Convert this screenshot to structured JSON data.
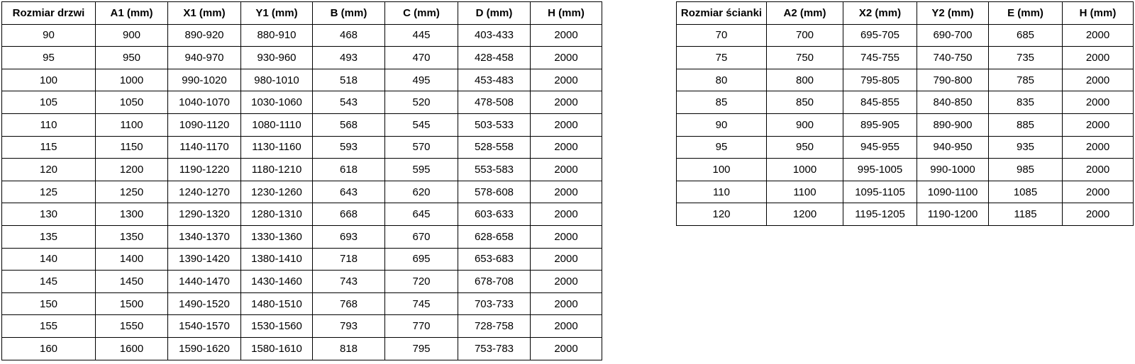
{
  "door_table": {
    "name": "door-size-table",
    "headers": [
      "Rozmiar drzwi",
      "A1 (mm)",
      "X1 (mm)",
      "Y1 (mm)",
      "B (mm)",
      "C (mm)",
      "D (mm)",
      "H (mm)"
    ],
    "rows": [
      [
        "90",
        "900",
        "890-920",
        "880-910",
        "468",
        "445",
        "403-433",
        "2000"
      ],
      [
        "95",
        "950",
        "940-970",
        "930-960",
        "493",
        "470",
        "428-458",
        "2000"
      ],
      [
        "100",
        "1000",
        "990-1020",
        "980-1010",
        "518",
        "495",
        "453-483",
        "2000"
      ],
      [
        "105",
        "1050",
        "1040-1070",
        "1030-1060",
        "543",
        "520",
        "478-508",
        "2000"
      ],
      [
        "110",
        "1100",
        "1090-1120",
        "1080-1110",
        "568",
        "545",
        "503-533",
        "2000"
      ],
      [
        "115",
        "1150",
        "1140-1170",
        "1130-1160",
        "593",
        "570",
        "528-558",
        "2000"
      ],
      [
        "120",
        "1200",
        "1190-1220",
        "1180-1210",
        "618",
        "595",
        "553-583",
        "2000"
      ],
      [
        "125",
        "1250",
        "1240-1270",
        "1230-1260",
        "643",
        "620",
        "578-608",
        "2000"
      ],
      [
        "130",
        "1300",
        "1290-1320",
        "1280-1310",
        "668",
        "645",
        "603-633",
        "2000"
      ],
      [
        "135",
        "1350",
        "1340-1370",
        "1330-1360",
        "693",
        "670",
        "628-658",
        "2000"
      ],
      [
        "140",
        "1400",
        "1390-1420",
        "1380-1410",
        "718",
        "695",
        "653-683",
        "2000"
      ],
      [
        "145",
        "1450",
        "1440-1470",
        "1430-1460",
        "743",
        "720",
        "678-708",
        "2000"
      ],
      [
        "150",
        "1500",
        "1490-1520",
        "1480-1510",
        "768",
        "745",
        "703-733",
        "2000"
      ],
      [
        "155",
        "1550",
        "1540-1570",
        "1530-1560",
        "793",
        "770",
        "728-758",
        "2000"
      ],
      [
        "160",
        "1600",
        "1590-1620",
        "1580-1610",
        "818",
        "795",
        "753-783",
        "2000"
      ]
    ]
  },
  "wall_table": {
    "name": "wall-size-table",
    "headers": [
      "Rozmiar ścianki",
      "A2 (mm)",
      "X2 (mm)",
      "Y2 (mm)",
      "E (mm)",
      "H (mm)"
    ],
    "rows": [
      [
        "70",
        "700",
        "695-705",
        "690-700",
        "685",
        "2000"
      ],
      [
        "75",
        "750",
        "745-755",
        "740-750",
        "735",
        "2000"
      ],
      [
        "80",
        "800",
        "795-805",
        "790-800",
        "785",
        "2000"
      ],
      [
        "85",
        "850",
        "845-855",
        "840-850",
        "835",
        "2000"
      ],
      [
        "90",
        "900",
        "895-905",
        "890-900",
        "885",
        "2000"
      ],
      [
        "95",
        "950",
        "945-955",
        "940-950",
        "935",
        "2000"
      ],
      [
        "100",
        "1000",
        "995-1005",
        "990-1000",
        "985",
        "2000"
      ],
      [
        "110",
        "1100",
        "1095-1105",
        "1090-1100",
        "1085",
        "2000"
      ],
      [
        "120",
        "1200",
        "1195-1205",
        "1190-1200",
        "1185",
        "2000"
      ]
    ]
  },
  "colors": {
    "background": "#ffffff",
    "border": "#000000",
    "text": "#000000"
  }
}
